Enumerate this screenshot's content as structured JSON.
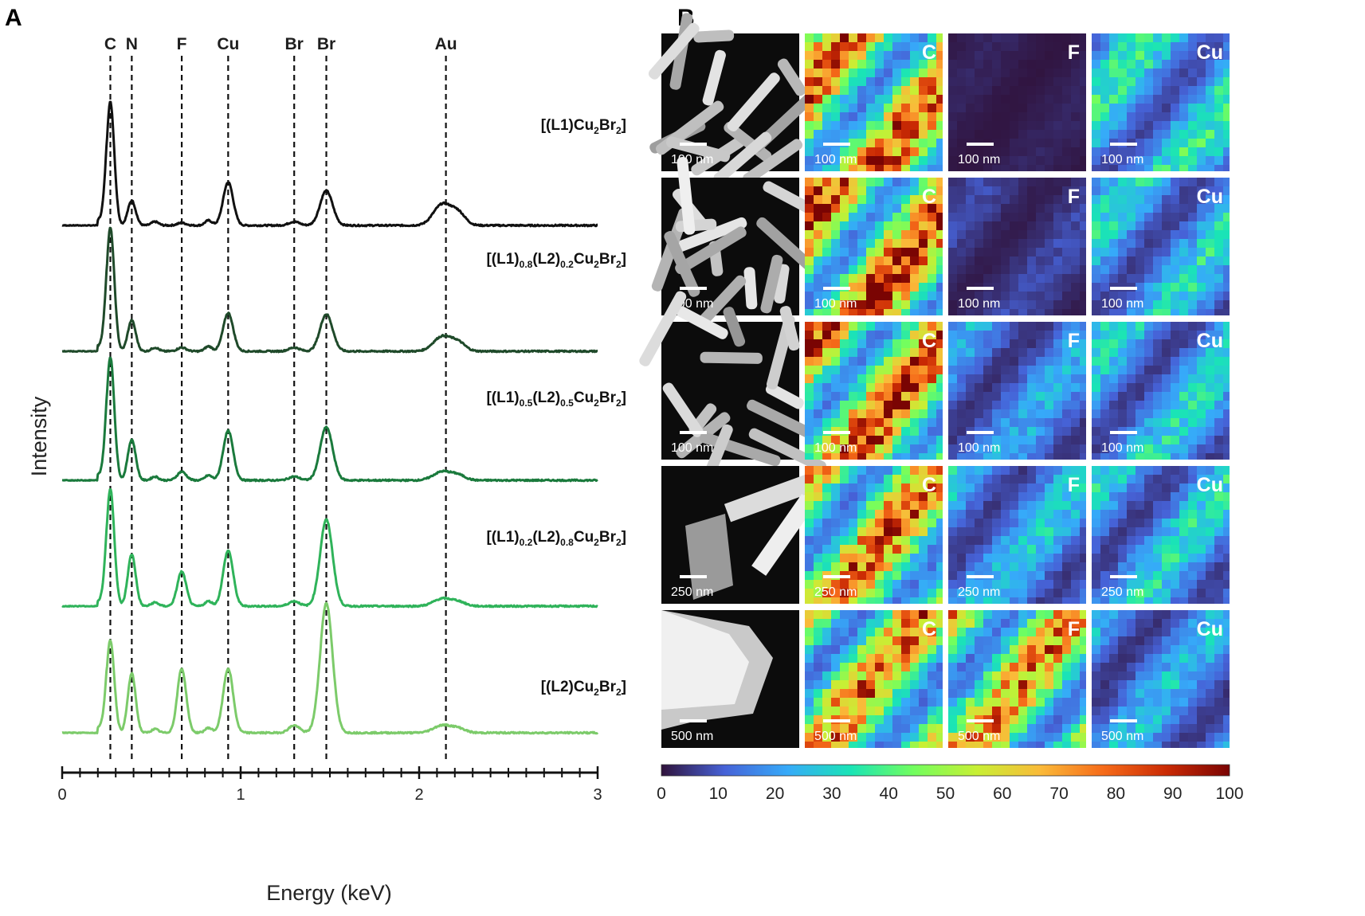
{
  "panels": {
    "a_label": "A",
    "b_label": "B"
  },
  "chart_data": [
    {
      "type": "line",
      "panel": "A",
      "xlabel": "Energy (keV)",
      "ylabel": "Intensity",
      "xlim": [
        0,
        3
      ],
      "x_ticks": [
        "0",
        "1",
        "2",
        "3"
      ],
      "element_lines": [
        {
          "element": "C",
          "energy": 0.27
        },
        {
          "element": "N",
          "energy": 0.39
        },
        {
          "element": "F",
          "energy": 0.67
        },
        {
          "element": "Cu",
          "energy": 0.93
        },
        {
          "element": "Br",
          "energy": 1.3
        },
        {
          "element": "Br",
          "energy": 1.48
        },
        {
          "element": "Au",
          "energy": 2.15
        }
      ],
      "series": [
        {
          "name_parts": [
            [
              "[(L1)Cu",
              ""
            ],
            [
              "2",
              "sub"
            ],
            [
              "Br",
              ""
            ],
            [
              "2",
              "sub"
            ],
            [
              "]",
              ""
            ]
          ],
          "color": "#111111",
          "peaks": {
            "C": 1.0,
            "N": 0.2,
            "F": 0.02,
            "Cu": 0.35,
            "Br_L": 0.03,
            "Br": 0.28,
            "Au": 0.17
          }
        },
        {
          "name_parts": [
            [
              "[(L1)",
              ""
            ],
            [
              "0.8",
              "sub"
            ],
            [
              "(L2)",
              ""
            ],
            [
              "0.2",
              "sub"
            ],
            [
              "Cu",
              ""
            ],
            [
              "2",
              "sub"
            ],
            [
              "Br",
              ""
            ],
            [
              "2",
              "sub"
            ],
            [
              "]",
              ""
            ]
          ],
          "color": "#1f4a2a",
          "peaks": {
            "C": 1.0,
            "N": 0.25,
            "F": 0.03,
            "Cu": 0.31,
            "Br_L": 0.03,
            "Br": 0.3,
            "Au": 0.12
          }
        },
        {
          "name_parts": [
            [
              "[(L1)",
              ""
            ],
            [
              "0.5",
              "sub"
            ],
            [
              "(L2)",
              ""
            ],
            [
              "0.5",
              "sub"
            ],
            [
              "Cu",
              ""
            ],
            [
              "2",
              "sub"
            ],
            [
              "Br",
              ""
            ],
            [
              "2",
              "sub"
            ],
            [
              "]",
              ""
            ]
          ],
          "color": "#1a7a3c",
          "peaks": {
            "C": 1.0,
            "N": 0.33,
            "F": 0.07,
            "Cu": 0.4,
            "Br_L": 0.03,
            "Br": 0.43,
            "Au": 0.07
          }
        },
        {
          "name_parts": [
            [
              "[(L1)",
              ""
            ],
            [
              "0.2",
              "sub"
            ],
            [
              "(L2)",
              ""
            ],
            [
              "0.8",
              "sub"
            ],
            [
              "Cu",
              ""
            ],
            [
              "2",
              "sub"
            ],
            [
              "Br",
              ""
            ],
            [
              "2",
              "sub"
            ],
            [
              "]",
              ""
            ]
          ],
          "color": "#2fb35a",
          "peaks": {
            "C": 0.95,
            "N": 0.42,
            "F": 0.28,
            "Cu": 0.45,
            "Br_L": 0.04,
            "Br": 0.7,
            "Au": 0.06
          }
        },
        {
          "name_parts": [
            [
              "[(L2)Cu",
              ""
            ],
            [
              "2",
              "sub"
            ],
            [
              "Br",
              ""
            ],
            [
              "2",
              "sub"
            ],
            [
              "]",
              ""
            ]
          ],
          "color": "#7ccb6a",
          "peaks": {
            "C": 0.75,
            "N": 0.48,
            "F": 0.52,
            "Cu": 0.52,
            "Br_L": 0.06,
            "Br": 1.05,
            "Au": 0.06
          }
        }
      ]
    },
    {
      "type": "heatmap",
      "panel": "B",
      "columns": [
        "",
        "C",
        "F",
        "Cu"
      ],
      "rows": [
        {
          "scale_bar": "100 nm",
          "intensity": {
            "C": 0.62,
            "F": 0.02,
            "Cu": 0.28
          }
        },
        {
          "scale_bar": "100 nm",
          "intensity": {
            "C": 0.66,
            "F": 0.06,
            "Cu": 0.24
          }
        },
        {
          "scale_bar": "100 nm",
          "intensity": {
            "C": 0.66,
            "F": 0.18,
            "Cu": 0.24
          }
        },
        {
          "scale_bar": "250 nm",
          "intensity": {
            "C": 0.6,
            "F": 0.22,
            "Cu": 0.24
          }
        },
        {
          "scale_bar": "500 nm",
          "intensity": {
            "C": 0.58,
            "F": 0.56,
            "Cu": 0.2
          }
        }
      ],
      "colorbar": {
        "min": 0,
        "max": 100,
        "ticks": [
          "0",
          "10",
          "20",
          "30",
          "40",
          "50",
          "60",
          "70",
          "80",
          "90",
          "100"
        ],
        "colormap": [
          "#30123b",
          "#4662d7",
          "#36aaf9",
          "#1ae4b6",
          "#72fe5e",
          "#c8ef34",
          "#faba39",
          "#f66b19",
          "#ca2a04",
          "#7a0403"
        ]
      }
    }
  ]
}
